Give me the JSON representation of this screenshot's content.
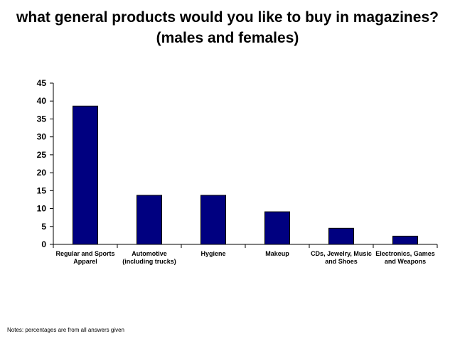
{
  "chart_data": {
    "type": "bar",
    "title_lines": [
      "what general products would you like to buy in magazines?",
      "(males and females)"
    ],
    "categories": [
      [
        "Regular and Sports",
        "Apparel"
      ],
      [
        "Automotive",
        "(including trucks)"
      ],
      [
        "Hygiene"
      ],
      [
        "Makeup"
      ],
      [
        "CDs, Jewelry, Music",
        "and Shoes"
      ],
      [
        "Electronics, Games",
        "and Weapons"
      ]
    ],
    "values": [
      38.6,
      13.7,
      13.7,
      9.1,
      4.5,
      2.3
    ],
    "ylim": [
      0,
      45
    ],
    "yticks": [
      "0",
      "5",
      "10",
      "15",
      "20",
      "25",
      "30",
      "35",
      "40",
      "45"
    ],
    "bar_color": "#000080",
    "grid": false,
    "legend": "none",
    "xlabel": "",
    "ylabel": ""
  },
  "note": "Notes: percentages are from all answers given"
}
